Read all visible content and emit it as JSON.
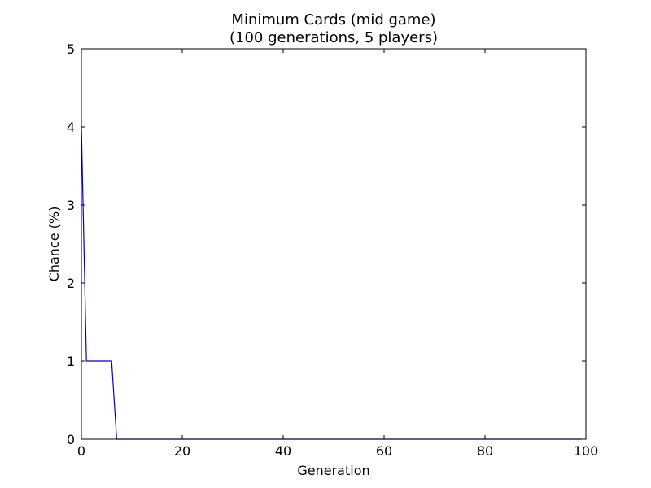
{
  "chart_data": {
    "type": "line",
    "title_line1": "Minimum Cards (mid game)",
    "title_line2": "(100 generations, 5 players)",
    "xlabel": "Generation",
    "ylabel": "Chance (%)",
    "xlim": [
      0,
      100
    ],
    "ylim": [
      0,
      5
    ],
    "xticks": [
      "0",
      "20",
      "40",
      "60",
      "80",
      "100"
    ],
    "yticks": [
      "0",
      "1",
      "2",
      "3",
      "4",
      "5"
    ],
    "grid": false,
    "series": [
      {
        "color": "#0000cc",
        "x": [
          0,
          1,
          2,
          3,
          4,
          5,
          6,
          7,
          8,
          9,
          10,
          20,
          30,
          40,
          50,
          60,
          70,
          80,
          90,
          99
        ],
        "y": [
          4,
          1,
          1,
          1,
          1,
          1,
          1,
          0,
          0,
          0,
          0,
          0,
          0,
          0,
          0,
          0,
          0,
          0,
          0,
          0
        ]
      }
    ]
  }
}
